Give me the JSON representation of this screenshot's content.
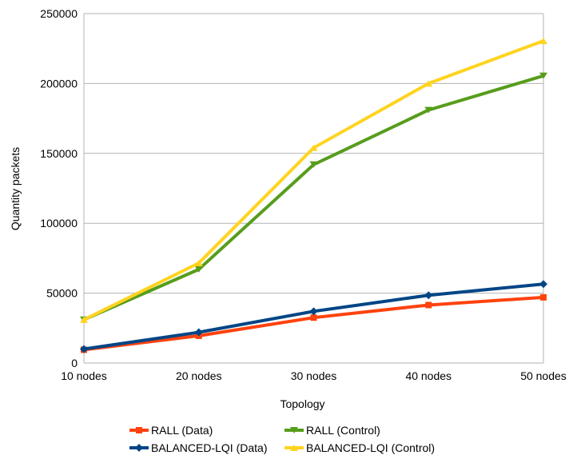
{
  "chart_data": {
    "type": "line",
    "categories": [
      "10 nodes",
      "20 nodes",
      "30 nodes",
      "40 nodes",
      "50 nodes"
    ],
    "xlabel": "Topology",
    "ylabel": "Quantity packets",
    "ylim": [
      0,
      250000
    ],
    "yticks": [
      "0",
      "50000",
      "100000",
      "150000",
      "200000",
      "250000"
    ],
    "grid": "horizontal",
    "legend_position": "bottom",
    "series": [
      {
        "name": "RALL (Data)",
        "color": "#ff420e",
        "marker": "square",
        "values": [
          9500,
          19500,
          32500,
          41500,
          47000
        ]
      },
      {
        "name": "RALL (Control)",
        "color": "#579d1c",
        "marker": "triangle-down",
        "values": [
          31000,
          67000,
          142000,
          181000,
          205500
        ]
      },
      {
        "name": "BALANCED-LQI (Data)",
        "color": "#004586",
        "marker": "diamond",
        "values": [
          10000,
          22000,
          37000,
          48500,
          56500
        ]
      },
      {
        "name": "BALANCED-LQI (Control)",
        "color": "#ffd320",
        "marker": "triangle-up",
        "values": [
          31000,
          71500,
          154000,
          200000,
          230500
        ]
      }
    ]
  }
}
